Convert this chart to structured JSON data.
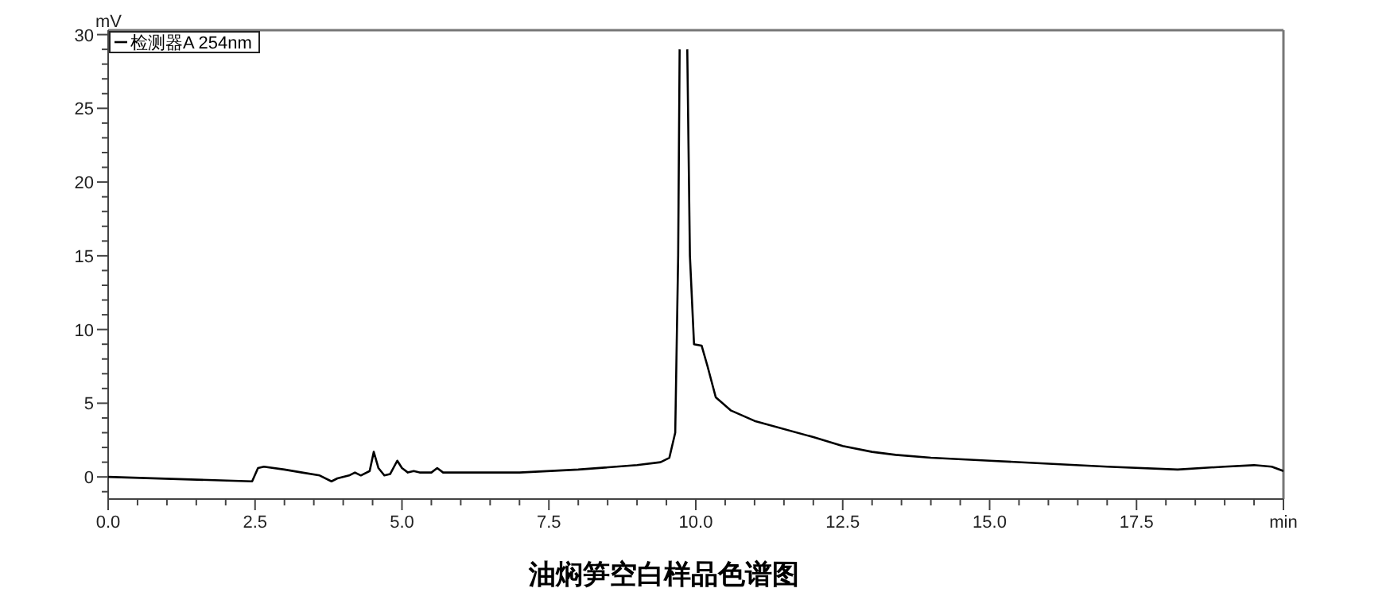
{
  "chart_data": {
    "type": "line",
    "title": "油焖笋空白样品色谱图",
    "ylabel": "mV",
    "legend": "top left",
    "grid": false,
    "marker": "none",
    "line_style": "solid",
    "xlim": [
      0,
      20
    ],
    "ylim": [
      -1.5,
      30.3
    ],
    "xticks": [
      {
        "value": 0,
        "label": "0.0"
      },
      {
        "value": 0.5,
        "label": null
      },
      {
        "value": 1,
        "label": null
      },
      {
        "value": 1.5,
        "label": null
      },
      {
        "value": 2,
        "label": null
      },
      {
        "value": 2.5,
        "label": "2.5"
      },
      {
        "value": 3,
        "label": null
      },
      {
        "value": 3.5,
        "label": null
      },
      {
        "value": 4,
        "label": null
      },
      {
        "value": 4.5,
        "label": null
      },
      {
        "value": 5,
        "label": "5.0"
      },
      {
        "value": 5.5,
        "label": null
      },
      {
        "value": 6,
        "label": null
      },
      {
        "value": 6.5,
        "label": null
      },
      {
        "value": 7,
        "label": null
      },
      {
        "value": 7.5,
        "label": "7.5"
      },
      {
        "value": 8,
        "label": null
      },
      {
        "value": 8.5,
        "label": null
      },
      {
        "value": 9,
        "label": null
      },
      {
        "value": 9.5,
        "label": null
      },
      {
        "value": 10,
        "label": "10.0"
      },
      {
        "value": 10.5,
        "label": null
      },
      {
        "value": 11,
        "label": null
      },
      {
        "value": 11.5,
        "label": null
      },
      {
        "value": 12,
        "label": null
      },
      {
        "value": 12.5,
        "label": "12.5"
      },
      {
        "value": 13,
        "label": null
      },
      {
        "value": 13.5,
        "label": null
      },
      {
        "value": 14,
        "label": null
      },
      {
        "value": 14.5,
        "label": null
      },
      {
        "value": 15,
        "label": "15.0"
      },
      {
        "value": 15.5,
        "label": null
      },
      {
        "value": 16,
        "label": null
      },
      {
        "value": 16.5,
        "label": null
      },
      {
        "value": 17,
        "label": null
      },
      {
        "value": 17.5,
        "label": "17.5"
      },
      {
        "value": 18,
        "label": null
      },
      {
        "value": 18.5,
        "label": null
      },
      {
        "value": 19,
        "label": null
      },
      {
        "value": 19.5,
        "label": null
      },
      {
        "value": 20,
        "label": "min"
      }
    ],
    "yticks": [
      {
        "value": -1,
        "label": null
      },
      0,
      {
        "value": 1,
        "label": null
      },
      {
        "value": 2,
        "label": null
      },
      {
        "value": 3,
        "label": null
      },
      {
        "value": 4,
        "label": null
      },
      5,
      {
        "value": 6,
        "label": null
      },
      {
        "value": 7,
        "label": null
      },
      {
        "value": 8,
        "label": null
      },
      {
        "value": 9,
        "label": null
      },
      10,
      {
        "value": 11,
        "label": null
      },
      {
        "value": 12,
        "label": null
      },
      {
        "value": 13,
        "label": null
      },
      {
        "value": 14,
        "label": null
      },
      15,
      {
        "value": 16,
        "label": null
      },
      {
        "value": 17,
        "label": null
      },
      {
        "value": 18,
        "label": null
      },
      {
        "value": 19,
        "label": null
      },
      20,
      {
        "value": 21,
        "label": null
      },
      {
        "value": 22,
        "label": null
      },
      {
        "value": 23,
        "label": null
      },
      {
        "value": 24,
        "label": null
      },
      25,
      {
        "value": 26,
        "label": null
      },
      {
        "value": 27,
        "label": null
      },
      {
        "value": 28,
        "label": null
      },
      {
        "value": 29,
        "label": null
      },
      30
    ],
    "series": [
      {
        "name": "检测器A 254nm",
        "color": "#000000",
        "x": [
          0,
          2.45,
          2.55,
          2.65,
          3.0,
          3.3,
          3.6,
          3.8,
          3.9,
          4.1,
          4.2,
          4.3,
          4.45,
          4.52,
          4.6,
          4.7,
          4.8,
          4.92,
          5.0,
          5.1,
          5.2,
          5.3,
          5.5,
          5.6,
          5.7,
          6.0,
          7.0,
          8.0,
          9.0,
          9.4,
          9.55,
          9.65,
          9.7,
          9.725,
          9.73,
          9.84,
          9.855,
          9.9,
          9.97,
          10.1,
          10.2,
          10.34,
          10.6,
          11.0,
          12.0,
          12.5,
          13.0,
          13.4,
          14.0,
          15.0,
          16.0,
          17.0,
          18.2,
          19.0,
          19.5,
          19.8,
          20.0
        ],
        "values": [
          0.0,
          -0.3,
          0.6,
          0.7,
          0.5,
          0.3,
          0.1,
          -0.3,
          -0.1,
          0.1,
          0.3,
          0.1,
          0.4,
          1.7,
          0.6,
          0.1,
          0.2,
          1.1,
          0.6,
          0.3,
          0.4,
          0.3,
          0.3,
          0.6,
          0.3,
          0.3,
          0.3,
          0.5,
          0.8,
          1.0,
          1.3,
          3,
          15,
          29,
          null,
          null,
          29,
          15,
          9.0,
          8.9,
          7.5,
          5.4,
          4.5,
          3.8,
          2.7,
          2.1,
          1.7,
          1.5,
          1.3,
          1.1,
          0.9,
          0.7,
          0.5,
          0.7,
          0.8,
          0.7,
          0.4
        ]
      }
    ]
  }
}
